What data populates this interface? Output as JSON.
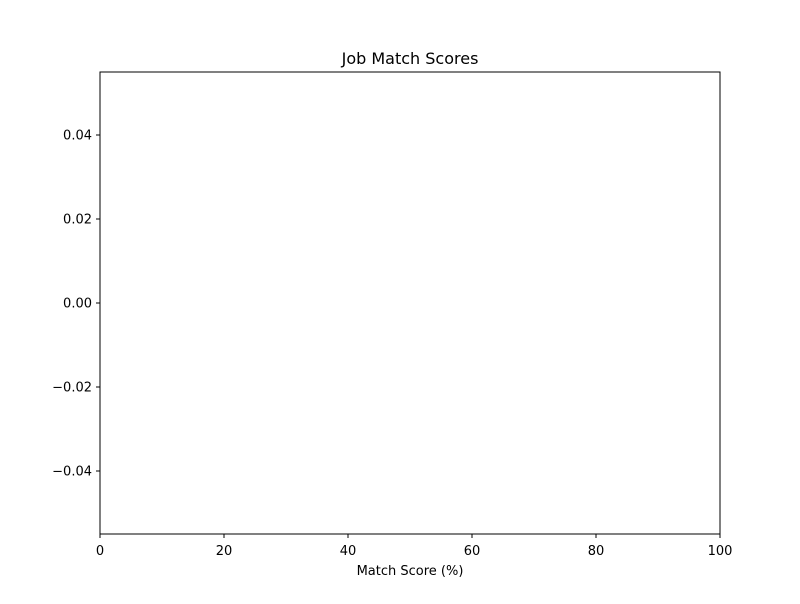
{
  "chart_data": {
    "type": "bar",
    "title": "Job Match Scores",
    "xlabel": "Match Score (%)",
    "ylabel": "",
    "categories": [],
    "values": [],
    "xlim": [
      0,
      100
    ],
    "ylim": [
      -0.055,
      0.055
    ],
    "x_ticks": [
      0,
      20,
      40,
      60,
      80,
      100
    ],
    "x_tick_labels": [
      "0",
      "20",
      "40",
      "60",
      "80",
      "100"
    ],
    "y_ticks": [
      -0.04,
      -0.02,
      0.0,
      0.02,
      0.04
    ],
    "y_tick_labels": [
      "−0.04",
      "−0.02",
      "0.00",
      "0.02",
      "0.04"
    ],
    "grid": false,
    "legend": false
  }
}
